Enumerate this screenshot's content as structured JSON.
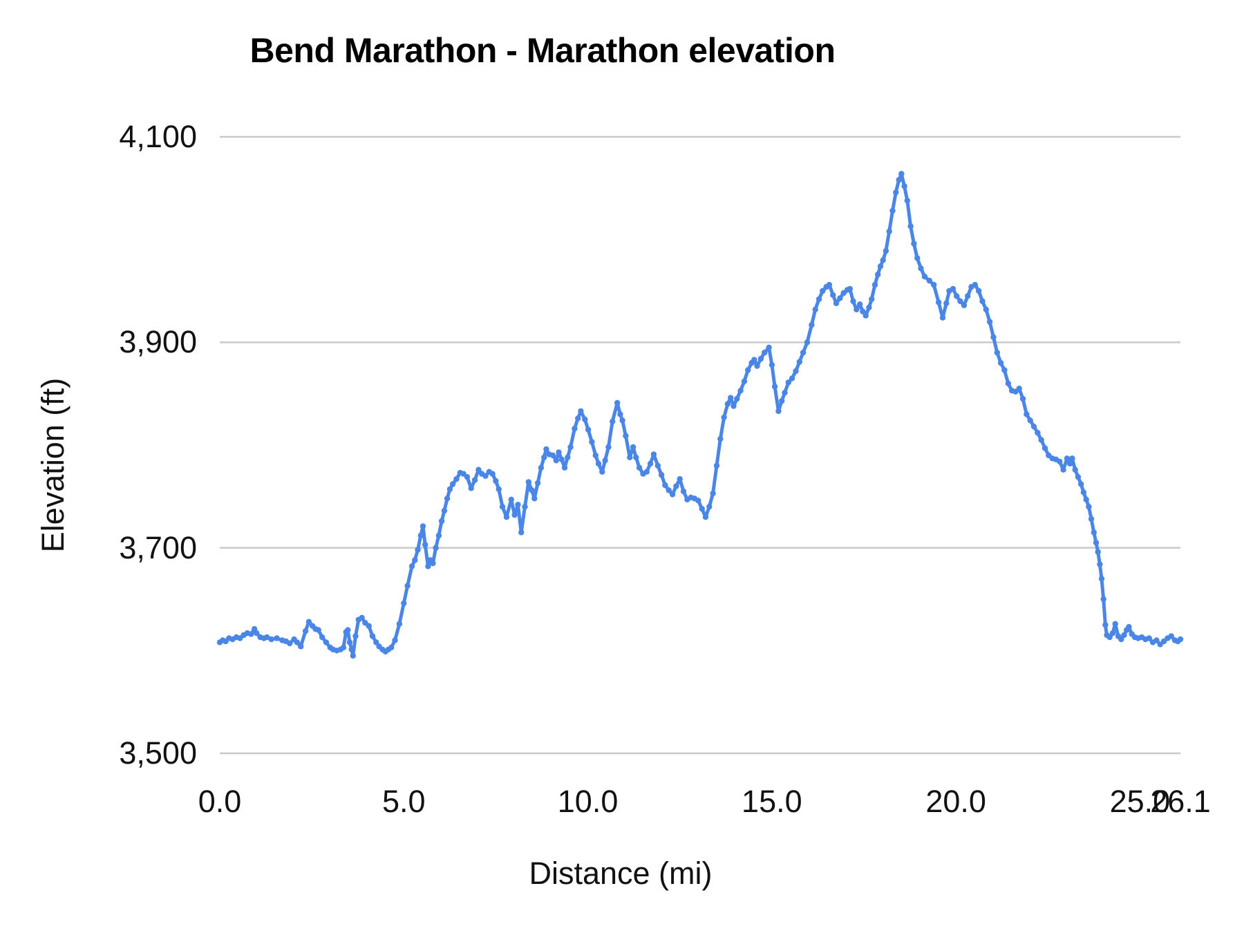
{
  "title": "Bend Marathon - Marathon elevation",
  "colors": {
    "line": "#4a86e8",
    "grid": "#c9c9c9",
    "text": "#111111",
    "title_text": "#000000",
    "background": "#ffffff"
  },
  "chart_data": {
    "type": "line",
    "title": "Bend Marathon - Marathon elevation",
    "xlabel": "Distance (mi)",
    "ylabel": "Elevation (ft)",
    "xlim": [
      0,
      26.1
    ],
    "ylim": [
      3500,
      4100
    ],
    "grid": "horizontal-only",
    "legend": "none",
    "marker_style": "dense-round-markers",
    "x_ticks": [
      {
        "value": 0.0,
        "label": "0.0"
      },
      {
        "value": 5.0,
        "label": "5.0"
      },
      {
        "value": 10.0,
        "label": "10.0"
      },
      {
        "value": 15.0,
        "label": "15.0"
      },
      {
        "value": 20.0,
        "label": "20.0"
      },
      {
        "value": 25.0,
        "label": "25.0"
      },
      {
        "value": 26.1,
        "label": "26.1"
      }
    ],
    "y_ticks": [
      {
        "value": 3500,
        "label": "3,500"
      },
      {
        "value": 3700,
        "label": "3,700"
      },
      {
        "value": 3900,
        "label": "3,900"
      },
      {
        "value": 4100,
        "label": "4,100"
      }
    ],
    "series": [
      {
        "name": "Marathon elevation",
        "color": "#4a86e8",
        "points": [
          [
            0,
            3608
          ],
          [
            0.08,
            3610
          ],
          [
            0.16,
            3609
          ],
          [
            0.25,
            3612
          ],
          [
            0.35,
            3611
          ],
          [
            0.45,
            3613
          ],
          [
            0.55,
            3612
          ],
          [
            0.65,
            3615
          ],
          [
            0.75,
            3617
          ],
          [
            0.85,
            3616
          ],
          [
            0.94,
            3621
          ],
          [
            1.0,
            3617
          ],
          [
            1.1,
            3613
          ],
          [
            1.2,
            3612
          ],
          [
            1.28,
            3613
          ],
          [
            1.4,
            3611
          ],
          [
            1.55,
            3612
          ],
          [
            1.7,
            3610
          ],
          [
            1.8,
            3609
          ],
          [
            1.9,
            3607
          ],
          [
            2.02,
            3611
          ],
          [
            2.1,
            3608
          ],
          [
            2.2,
            3604
          ],
          [
            2.33,
            3619
          ],
          [
            2.42,
            3628
          ],
          [
            2.52,
            3624
          ],
          [
            2.6,
            3621
          ],
          [
            2.68,
            3620
          ],
          [
            2.78,
            3613
          ],
          [
            2.89,
            3608
          ],
          [
            3.0,
            3603
          ],
          [
            3.08,
            3601
          ],
          [
            3.18,
            3600
          ],
          [
            3.28,
            3601
          ],
          [
            3.36,
            3603
          ],
          [
            3.43,
            3618
          ],
          [
            3.48,
            3620
          ],
          [
            3.53,
            3608
          ],
          [
            3.58,
            3601
          ],
          [
            3.62,
            3595
          ],
          [
            3.69,
            3614
          ],
          [
            3.77,
            3630
          ],
          [
            3.86,
            3632
          ],
          [
            3.95,
            3627
          ],
          [
            4.05,
            3624
          ],
          [
            4.15,
            3614
          ],
          [
            4.25,
            3608
          ],
          [
            4.33,
            3604
          ],
          [
            4.42,
            3601
          ],
          [
            4.5,
            3599
          ],
          [
            4.58,
            3601
          ],
          [
            4.66,
            3603
          ],
          [
            4.76,
            3610
          ],
          [
            4.88,
            3626
          ],
          [
            5.0,
            3646
          ],
          [
            5.1,
            3663
          ],
          [
            5.22,
            3682
          ],
          [
            5.3,
            3688
          ],
          [
            5.38,
            3698
          ],
          [
            5.46,
            3712
          ],
          [
            5.52,
            3721
          ],
          [
            5.58,
            3703
          ],
          [
            5.66,
            3682
          ],
          [
            5.72,
            3688
          ],
          [
            5.79,
            3685
          ],
          [
            5.87,
            3700
          ],
          [
            5.95,
            3712
          ],
          [
            6.03,
            3726
          ],
          [
            6.1,
            3736
          ],
          [
            6.18,
            3748
          ],
          [
            6.25,
            3757
          ],
          [
            6.33,
            3762
          ],
          [
            6.43,
            3767
          ],
          [
            6.53,
            3773
          ],
          [
            6.62,
            3772
          ],
          [
            6.72,
            3769
          ],
          [
            6.83,
            3758
          ],
          [
            6.93,
            3766
          ],
          [
            7.03,
            3776
          ],
          [
            7.12,
            3772
          ],
          [
            7.22,
            3770
          ],
          [
            7.32,
            3774
          ],
          [
            7.41,
            3772
          ],
          [
            7.5,
            3765
          ],
          [
            7.58,
            3757
          ],
          [
            7.68,
            3740
          ],
          [
            7.79,
            3730
          ],
          [
            7.92,
            3747
          ],
          [
            8.01,
            3732
          ],
          [
            8.1,
            3742
          ],
          [
            8.19,
            3715
          ],
          [
            8.29,
            3740
          ],
          [
            8.39,
            3764
          ],
          [
            8.48,
            3756
          ],
          [
            8.55,
            3748
          ],
          [
            8.64,
            3763
          ],
          [
            8.73,
            3778
          ],
          [
            8.81,
            3788
          ],
          [
            8.87,
            3796
          ],
          [
            8.95,
            3791
          ],
          [
            9.05,
            3790
          ],
          [
            9.14,
            3785
          ],
          [
            9.21,
            3793
          ],
          [
            9.29,
            3786
          ],
          [
            9.37,
            3778
          ],
          [
            9.45,
            3788
          ],
          [
            9.53,
            3798
          ],
          [
            9.64,
            3816
          ],
          [
            9.73,
            3826
          ],
          [
            9.81,
            3833
          ],
          [
            9.92,
            3825
          ],
          [
            10.01,
            3815
          ],
          [
            10.11,
            3803
          ],
          [
            10.21,
            3790
          ],
          [
            10.29,
            3782
          ],
          [
            10.39,
            3774
          ],
          [
            10.47,
            3785
          ],
          [
            10.56,
            3798
          ],
          [
            10.67,
            3823
          ],
          [
            10.8,
            3841
          ],
          [
            10.88,
            3830
          ],
          [
            10.94,
            3824
          ],
          [
            11.03,
            3809
          ],
          [
            11.14,
            3788
          ],
          [
            11.23,
            3798
          ],
          [
            11.31,
            3788
          ],
          [
            11.4,
            3778
          ],
          [
            11.5,
            3772
          ],
          [
            11.6,
            3774
          ],
          [
            11.7,
            3782
          ],
          [
            11.79,
            3791
          ],
          [
            11.9,
            3780
          ],
          [
            12.0,
            3771
          ],
          [
            12.1,
            3761
          ],
          [
            12.2,
            3756
          ],
          [
            12.3,
            3752
          ],
          [
            12.4,
            3760
          ],
          [
            12.5,
            3767
          ],
          [
            12.6,
            3755
          ],
          [
            12.7,
            3747
          ],
          [
            12.8,
            3749
          ],
          [
            12.9,
            3748
          ],
          [
            13.0,
            3746
          ],
          [
            13.1,
            3738
          ],
          [
            13.2,
            3730
          ],
          [
            13.3,
            3740
          ],
          [
            13.4,
            3753
          ],
          [
            13.5,
            3780
          ],
          [
            13.6,
            3806
          ],
          [
            13.7,
            3827
          ],
          [
            13.8,
            3840
          ],
          [
            13.88,
            3846
          ],
          [
            13.96,
            3838
          ],
          [
            14.05,
            3845
          ],
          [
            14.15,
            3853
          ],
          [
            14.25,
            3862
          ],
          [
            14.35,
            3873
          ],
          [
            14.45,
            3880
          ],
          [
            14.52,
            3883
          ],
          [
            14.6,
            3877
          ],
          [
            14.7,
            3884
          ],
          [
            14.8,
            3890
          ],
          [
            14.92,
            3895
          ],
          [
            15.0,
            3878
          ],
          [
            15.08,
            3857
          ],
          [
            15.18,
            3833
          ],
          [
            15.27,
            3843
          ],
          [
            15.35,
            3851
          ],
          [
            15.45,
            3861
          ],
          [
            15.55,
            3865
          ],
          [
            15.65,
            3872
          ],
          [
            15.75,
            3881
          ],
          [
            15.85,
            3890
          ],
          [
            15.96,
            3900
          ],
          [
            16.08,
            3917
          ],
          [
            16.18,
            3932
          ],
          [
            16.28,
            3942
          ],
          [
            16.38,
            3950
          ],
          [
            16.48,
            3954
          ],
          [
            16.56,
            3956
          ],
          [
            16.66,
            3946
          ],
          [
            16.75,
            3938
          ],
          [
            16.85,
            3943
          ],
          [
            16.95,
            3948
          ],
          [
            17.05,
            3951
          ],
          [
            17.12,
            3952
          ],
          [
            17.21,
            3940
          ],
          [
            17.3,
            3932
          ],
          [
            17.39,
            3937
          ],
          [
            17.47,
            3930
          ],
          [
            17.55,
            3926
          ],
          [
            17.64,
            3934
          ],
          [
            17.71,
            3942
          ],
          [
            17.8,
            3956
          ],
          [
            17.88,
            3966
          ],
          [
            17.95,
            3974
          ],
          [
            18.02,
            3980
          ],
          [
            18.1,
            3989
          ],
          [
            18.19,
            4008
          ],
          [
            18.28,
            4028
          ],
          [
            18.37,
            4046
          ],
          [
            18.45,
            4058
          ],
          [
            18.52,
            4064
          ],
          [
            18.6,
            4052
          ],
          [
            18.68,
            4038
          ],
          [
            18.77,
            4013
          ],
          [
            18.86,
            3996
          ],
          [
            18.95,
            3982
          ],
          [
            19.05,
            3972
          ],
          [
            19.15,
            3964
          ],
          [
            19.28,
            3960
          ],
          [
            19.4,
            3956
          ],
          [
            19.53,
            3939
          ],
          [
            19.64,
            3924
          ],
          [
            19.74,
            3938
          ],
          [
            19.82,
            3950
          ],
          [
            19.92,
            3952
          ],
          [
            20.02,
            3945
          ],
          [
            20.12,
            3940
          ],
          [
            20.22,
            3936
          ],
          [
            20.32,
            3945
          ],
          [
            20.42,
            3954
          ],
          [
            20.52,
            3956
          ],
          [
            20.62,
            3950
          ],
          [
            20.72,
            3940
          ],
          [
            20.82,
            3932
          ],
          [
            20.92,
            3920
          ],
          [
            21.02,
            3905
          ],
          [
            21.12,
            3890
          ],
          [
            21.22,
            3880
          ],
          [
            21.32,
            3873
          ],
          [
            21.42,
            3860
          ],
          [
            21.52,
            3853
          ],
          [
            21.62,
            3852
          ],
          [
            21.72,
            3855
          ],
          [
            21.82,
            3845
          ],
          [
            21.92,
            3830
          ],
          [
            22.02,
            3824
          ],
          [
            22.12,
            3818
          ],
          [
            22.22,
            3812
          ],
          [
            22.32,
            3805
          ],
          [
            22.42,
            3797
          ],
          [
            22.52,
            3790
          ],
          [
            22.62,
            3787
          ],
          [
            22.72,
            3786
          ],
          [
            22.82,
            3784
          ],
          [
            22.92,
            3776
          ],
          [
            23.02,
            3787
          ],
          [
            23.1,
            3782
          ],
          [
            23.16,
            3787
          ],
          [
            23.24,
            3776
          ],
          [
            23.32,
            3769
          ],
          [
            23.4,
            3762
          ],
          [
            23.47,
            3754
          ],
          [
            23.54,
            3747
          ],
          [
            23.61,
            3740
          ],
          [
            23.68,
            3728
          ],
          [
            23.75,
            3715
          ],
          [
            23.81,
            3705
          ],
          [
            23.86,
            3696
          ],
          [
            23.91,
            3684
          ],
          [
            23.96,
            3670
          ],
          [
            24.01,
            3650
          ],
          [
            24.06,
            3625
          ],
          [
            24.1,
            3615
          ],
          [
            24.18,
            3613
          ],
          [
            24.26,
            3617
          ],
          [
            24.33,
            3626
          ],
          [
            24.41,
            3614
          ],
          [
            24.49,
            3611
          ],
          [
            24.57,
            3615
          ],
          [
            24.64,
            3620
          ],
          [
            24.7,
            3623
          ],
          [
            24.78,
            3616
          ],
          [
            24.86,
            3613
          ],
          [
            24.95,
            3612
          ],
          [
            25.05,
            3613
          ],
          [
            25.15,
            3611
          ],
          [
            25.25,
            3612
          ],
          [
            25.35,
            3608
          ],
          [
            25.45,
            3610
          ],
          [
            25.55,
            3606
          ],
          [
            25.65,
            3609
          ],
          [
            25.75,
            3612
          ],
          [
            25.85,
            3614
          ],
          [
            25.95,
            3610
          ],
          [
            26.03,
            3609
          ],
          [
            26.1,
            3611
          ]
        ]
      }
    ]
  }
}
